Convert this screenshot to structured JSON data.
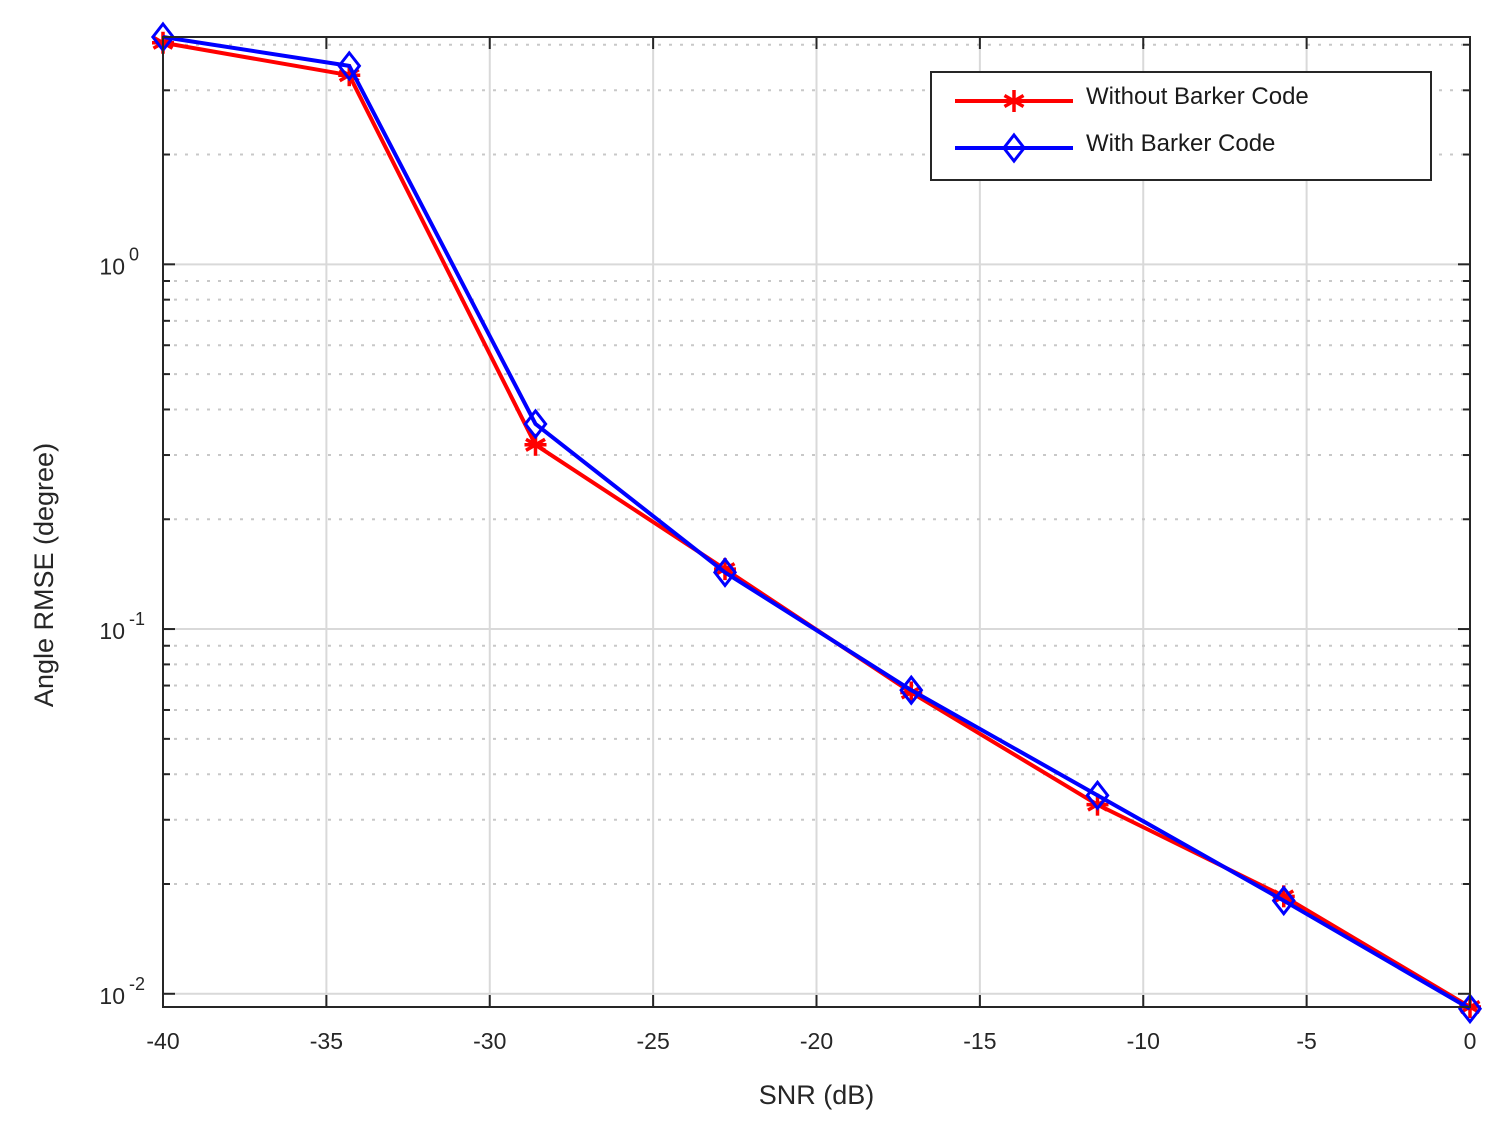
{
  "chart_data": {
    "type": "line",
    "xlabel": "SNR (dB)",
    "ylabel": "Angle RMSE (degree)",
    "xlim": [
      -40,
      0
    ],
    "ylim": [
      0.0092,
      4.2
    ],
    "y_scale": "log",
    "grid": true,
    "legend_position": "top-right",
    "x_ticks": [
      -40,
      -35,
      -30,
      -25,
      -20,
      -15,
      -10,
      -5,
      0
    ],
    "x_tick_labels": [
      "-40",
      "-35",
      "-30",
      "-25",
      "-20",
      "-15",
      "-10",
      "-5",
      "0"
    ],
    "y_ticks": [
      {
        "value": 0.01,
        "base": "10",
        "exponent": "-2"
      },
      {
        "value": 0.1,
        "base": "10",
        "exponent": "-1"
      },
      {
        "value": 1,
        "base": "10",
        "exponent": "0"
      }
    ],
    "x": [
      -40,
      -34.3,
      -28.6,
      -22.8,
      -17.1,
      -11.4,
      -5.7,
      0
    ],
    "series": [
      {
        "name": "Without Barker Code",
        "color": "#ff0000",
        "marker": "asterisk",
        "values": [
          4.05,
          3.3,
          0.32,
          0.146,
          0.067,
          0.033,
          0.0185,
          0.0092
        ]
      },
      {
        "name": "With Barker Code",
        "color": "#0000ff",
        "marker": "diamond",
        "values": [
          4.2,
          3.5,
          0.365,
          0.143,
          0.068,
          0.035,
          0.018,
          0.0091
        ]
      }
    ]
  }
}
